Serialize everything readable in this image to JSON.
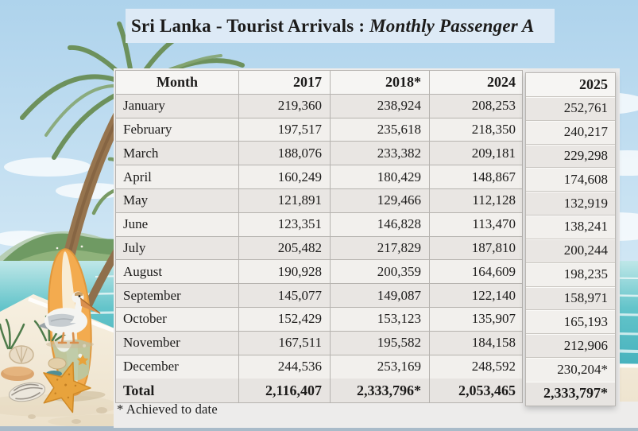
{
  "title": {
    "main": "Sri Lanka - Tourist Arrivals : ",
    "italic": "Monthly Passenger A"
  },
  "table": {
    "columns": [
      "Month",
      "2017",
      "2018*",
      "2024",
      "2025"
    ],
    "rows": [
      {
        "month": "January",
        "y2017": "219,360",
        "y2018": "238,924",
        "y2024": "208,253",
        "y2025": "252,761"
      },
      {
        "month": "February",
        "y2017": "197,517",
        "y2018": "235,618",
        "y2024": "218,350",
        "y2025": "240,217"
      },
      {
        "month": "March",
        "y2017": "188,076",
        "y2018": "233,382",
        "y2024": "209,181",
        "y2025": "229,298"
      },
      {
        "month": "April",
        "y2017": "160,249",
        "y2018": "180,429",
        "y2024": "148,867",
        "y2025": "174,608"
      },
      {
        "month": "May",
        "y2017": "121,891",
        "y2018": "129,466",
        "y2024": "112,128",
        "y2025": "132,919"
      },
      {
        "month": "June",
        "y2017": "123,351",
        "y2018": "146,828",
        "y2024": "113,470",
        "y2025": "138,241"
      },
      {
        "month": "July",
        "y2017": "205,482",
        "y2018": "217,829",
        "y2024": "187,810",
        "y2025": "200,244"
      },
      {
        "month": "August",
        "y2017": "190,928",
        "y2018": "200,359",
        "y2024": "164,609",
        "y2025": "198,235"
      },
      {
        "month": "September",
        "y2017": "145,077",
        "y2018": "149,087",
        "y2024": "122,140",
        "y2025": "158,971"
      },
      {
        "month": "October",
        "y2017": "152,429",
        "y2018": "153,123",
        "y2024": "135,907",
        "y2025": "165,193"
      },
      {
        "month": "November",
        "y2017": "167,511",
        "y2018": "195,582",
        "y2024": "184,158",
        "y2025": "212,906"
      },
      {
        "month": "December",
        "y2017": "244,536",
        "y2018": "253,169",
        "y2024": "248,592",
        "y2025": "230,204*"
      }
    ],
    "total": {
      "label": "Total",
      "y2017": "2,116,407",
      "y2018": "2,333,796*",
      "y2024": "2,053,465",
      "y2025": "2,333,797*"
    }
  },
  "footnote": "* Achieved to date",
  "chart_data": {
    "type": "table",
    "title": "Sri Lanka - Tourist Arrivals : Monthly Passenger A (title clipped at right edge)",
    "categories": [
      "January",
      "February",
      "March",
      "April",
      "May",
      "June",
      "July",
      "August",
      "September",
      "October",
      "November",
      "December"
    ],
    "series": [
      {
        "name": "2017",
        "values": [
          219360,
          197517,
          188076,
          160249,
          121891,
          123351,
          205482,
          190928,
          145077,
          152429,
          167511,
          244536
        ],
        "total": 2116407
      },
      {
        "name": "2018*",
        "values": [
          238924,
          235618,
          233382,
          180429,
          129466,
          146828,
          217829,
          200359,
          149087,
          153123,
          195582,
          253169
        ],
        "total": 2333796,
        "total_display": "2,333,796*"
      },
      {
        "name": "2024",
        "values": [
          208253,
          218350,
          209181,
          148867,
          112128,
          113470,
          187810,
          164609,
          122140,
          135907,
          184158,
          248592
        ],
        "total": 2053465
      },
      {
        "name": "2025",
        "values": [
          252761,
          240217,
          229298,
          174608,
          132919,
          138241,
          200244,
          198235,
          158971,
          165193,
          212906,
          230204
        ],
        "total": 2333797,
        "total_display": "2,333,797*",
        "december_display": "230,204*"
      }
    ],
    "footnote": "* Achieved to date"
  },
  "colors": {
    "sky": "#bcdcf0",
    "sea": "#58bec7",
    "sand": "#f1e8d6",
    "panel": "#edeceb",
    "row_odd": "#e9e6e3",
    "row_even": "#f2f0ed",
    "header_bg": "#f6f5f3",
    "total_bg": "#e7e4e1",
    "border": "#b6b3af",
    "text": "#1c1b1a",
    "title_bg": "#ddeaf6",
    "bottom_strip": "#a9bbc9"
  }
}
